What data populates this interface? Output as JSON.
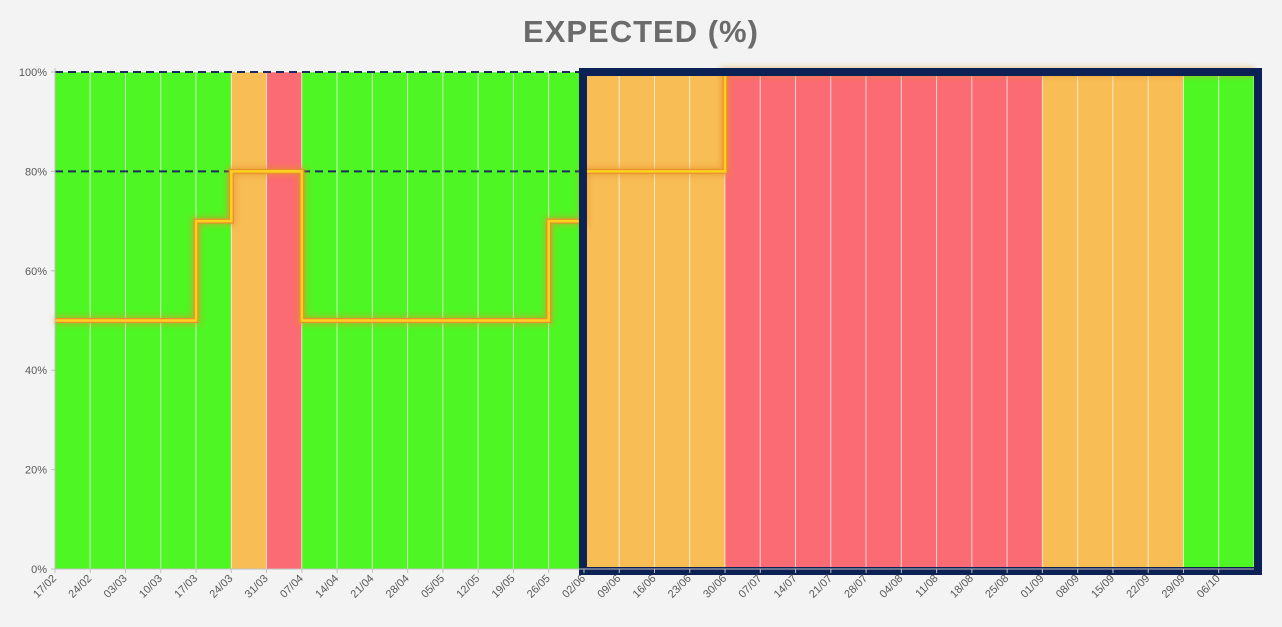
{
  "chart_data": {
    "type": "bar",
    "title": "EXPECTED (%)",
    "xlabel": "",
    "ylabel": "",
    "ylim": [
      0,
      100
    ],
    "y_ticks": [
      "0%",
      "20%",
      "40%",
      "60%",
      "80%",
      "100%"
    ],
    "y_tick_values": [
      0,
      20,
      40,
      60,
      80,
      100
    ],
    "categories": [
      "17/02",
      "24/02",
      "03/03",
      "10/03",
      "17/03",
      "24/03",
      "31/03",
      "07/04",
      "14/04",
      "21/04",
      "28/04",
      "05/05",
      "12/05",
      "19/05",
      "26/05",
      "02/06",
      "09/06",
      "16/06",
      "23/06",
      "30/06",
      "07/07",
      "14/07",
      "21/07",
      "28/07",
      "04/08",
      "11/08",
      "18/08",
      "25/08",
      "01/09",
      "08/09",
      "15/09",
      "22/09",
      "29/09",
      "06/10"
    ],
    "values": [
      100,
      100,
      100,
      100,
      100,
      100,
      100,
      100,
      100,
      100,
      100,
      100,
      100,
      100,
      100,
      100,
      100,
      100,
      100,
      100,
      100,
      100,
      100,
      100,
      100,
      100,
      100,
      100,
      100,
      100,
      100,
      100,
      100,
      100
    ],
    "bar_status": [
      "green",
      "green",
      "green",
      "green",
      "green",
      "orange",
      "red",
      "green",
      "green",
      "green",
      "green",
      "green",
      "green",
      "green",
      "green",
      "orange",
      "orange",
      "orange",
      "orange",
      "red",
      "red",
      "red",
      "red",
      "red",
      "red",
      "red",
      "red",
      "red",
      "orange",
      "orange",
      "orange",
      "orange",
      "green",
      "green"
    ],
    "series": [
      {
        "values": [
          50,
          50,
          50,
          50,
          70,
          80,
          80,
          50,
          50,
          50,
          50,
          50,
          50,
          50,
          70,
          80,
          80,
          80,
          80,
          100,
          100,
          100,
          100,
          100,
          100,
          100,
          100,
          100,
          100,
          100,
          100,
          100,
          100,
          100
        ]
      }
    ],
    "reference_lines": [
      80,
      100
    ],
    "highlight_range": [
      "02/06",
      "06/10"
    ],
    "grid": false,
    "legend": "none",
    "colors": {
      "green": "#4ef624",
      "orange": "#f8bd55",
      "red": "#fb6b73",
      "line": "#ffd21e",
      "line_glow": "#e8902c",
      "reference": "#1c2c5e",
      "highlight_border": "#0d2254",
      "background": "#f3f3f3",
      "axis": "#bfbfbf",
      "text": "#595959",
      "title": "#6b6b6b"
    }
  }
}
